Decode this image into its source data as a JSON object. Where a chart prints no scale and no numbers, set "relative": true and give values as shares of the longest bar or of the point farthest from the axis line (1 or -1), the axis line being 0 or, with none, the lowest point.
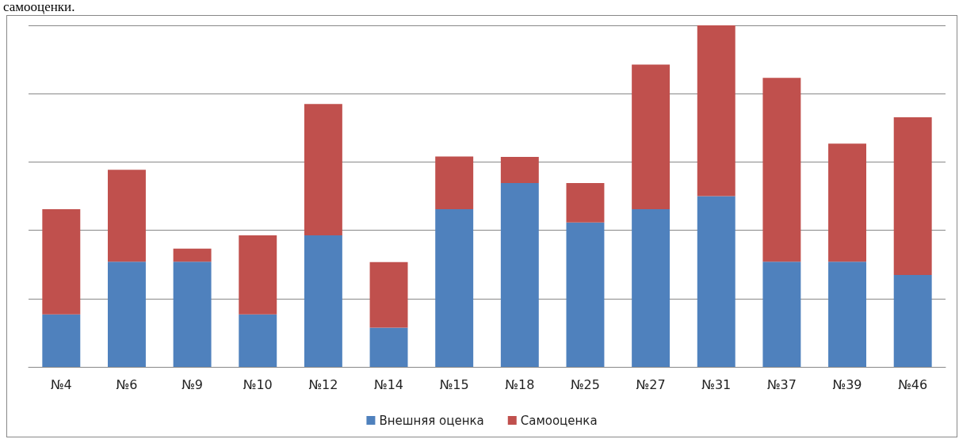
{
  "chart_data": {
    "type": "bar",
    "stacked": true,
    "relative": true,
    "grid": "y",
    "legend": "bottom",
    "annotations": [
      "самооценки."
    ],
    "categories": [
      "№4",
      "№6",
      "№9",
      "№10",
      "№12",
      "№14",
      "№15",
      "№18",
      "№25",
      "№27",
      "№31",
      "№37",
      "№39",
      "№46"
    ],
    "series": [
      {
        "name": "Внешняя оценка",
        "color": "#4f81bd",
        "values": [
          0.154,
          0.308,
          0.308,
          0.154,
          0.385,
          0.115,
          0.462,
          0.538,
          0.423,
          0.462,
          0.5,
          0.308,
          0.308,
          0.269
        ]
      },
      {
        "name": "Самооценка",
        "color": "#c0504d",
        "values": [
          0.308,
          0.269,
          0.038,
          0.231,
          0.385,
          0.192,
          0.154,
          0.077,
          0.115,
          0.423,
          0.5,
          0.538,
          0.346,
          0.462
        ]
      }
    ]
  }
}
